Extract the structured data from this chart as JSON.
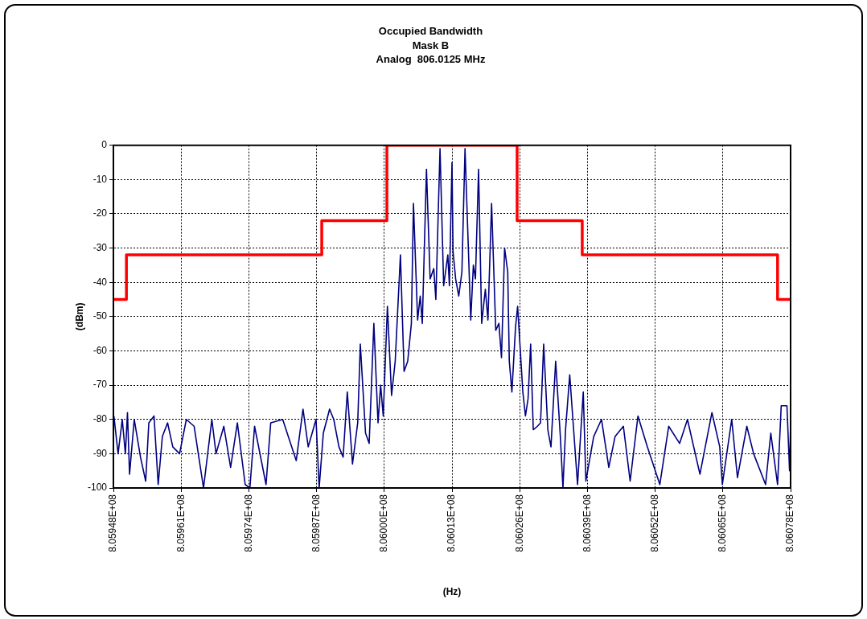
{
  "chart_data": {
    "type": "line",
    "title": "Occupied Bandwidth",
    "subtitle": "Mask B\nAnalog  806.0125 MHz",
    "xlabel": "(Hz)",
    "ylabel": "(dBm)",
    "xlim": [
      805948000,
      806078000
    ],
    "xticks": [
      {
        "value": 805948000,
        "label": "8.05948E+08"
      },
      {
        "value": 805961000,
        "label": "8.05961E+08"
      },
      {
        "value": 805974000,
        "label": "8.05974E+08"
      },
      {
        "value": 805987000,
        "label": "8.05987E+08"
      },
      {
        "value": 806000000,
        "label": "8.06000E+08"
      },
      {
        "value": 806013000,
        "label": "8.06013E+08"
      },
      {
        "value": 806026000,
        "label": "8.06026E+08"
      },
      {
        "value": 806039000,
        "label": "8.06039E+08"
      },
      {
        "value": 806052000,
        "label": "8.06052E+08"
      },
      {
        "value": 806065000,
        "label": "8.06065E+08"
      },
      {
        "value": 806078000,
        "label": "8.06078E+08"
      }
    ],
    "ylim": [
      -100,
      0
    ],
    "yticks": [
      0,
      -10,
      -20,
      -30,
      -40,
      -50,
      -60,
      -70,
      -80,
      -90,
      -100
    ],
    "grid": true,
    "series": [
      {
        "type": "step",
        "color": "#ff0000",
        "x": [
          805948000,
          805950500,
          805988000,
          806000500,
          806025500,
          806038000,
          806075500,
          806078000
        ],
        "values": [
          -45,
          -32,
          -22,
          0,
          -22,
          -32,
          -45,
          -45
        ]
      },
      {
        "type": "line",
        "color": "#000080",
        "x": [
          805948100,
          805948900,
          805949700,
          805950300,
          805950700,
          805951100,
          805952000,
          805953200,
          805954200,
          805954800,
          805955800,
          805956600,
          805957400,
          805958400,
          805959400,
          805960700,
          805962000,
          805963500,
          805965300,
          805966900,
          805967700,
          805969200,
          805970500,
          805971800,
          805973300,
          805974200,
          805975100,
          805977300,
          805978200,
          805980500,
          805983100,
          805984400,
          805985400,
          805986900,
          805987500,
          805988300,
          805989500,
          805990300,
          805991300,
          805992100,
          805992900,
          805993900,
          805994900,
          805995400,
          805996400,
          805997100,
          805998000,
          805998800,
          805999300,
          805999800,
          806000600,
          806001400,
          806002100,
          806003100,
          806003800,
          806004500,
          806005200,
          806005600,
          806006400,
          806006900,
          806007300,
          806008100,
          806008800,
          806009500,
          806009900,
          806010700,
          806011400,
          806012200,
          806012500,
          806013000,
          806013200,
          806013700,
          806014300,
          806014900,
          806015500,
          806016600,
          806017100,
          806017500,
          806018100,
          806018700,
          806019400,
          806019900,
          806020600,
          806021400,
          806022000,
          806022500,
          806023100,
          806023700,
          806024000,
          806024500,
          806025200,
          806025600,
          806026600,
          806027100,
          806027600,
          806028100,
          806028600,
          806029400,
          806030000,
          806030600,
          806031400,
          806032000,
          806032900,
          806033800,
          806034300,
          806034800,
          806035600,
          806037100,
          806038200,
          806038700,
          806040200,
          806041700,
          806043100,
          806044300,
          806045900,
          806047200,
          806048700,
          806050500,
          806052900,
          806054600,
          806056700,
          806058200,
          806060600,
          806062900,
          806064400,
          806064900,
          806066700,
          806067800,
          806069600,
          806070900,
          806073200,
          806074200,
          806075500,
          806076200,
          806077300,
          806077800,
          806078000
        ],
        "values": [
          -79,
          -90,
          -80,
          -90,
          -78,
          -96,
          -80,
          -91,
          -98,
          -81,
          -79,
          -99,
          -85,
          -81,
          -88,
          -90,
          -80,
          -82,
          -100,
          -80,
          -90,
          -82,
          -94,
          -81,
          -99,
          -100,
          -82,
          -99,
          -81,
          -80,
          -92,
          -77,
          -88,
          -80,
          -100,
          -84,
          -77,
          -80,
          -88,
          -91,
          -72,
          -93,
          -81,
          -58,
          -84,
          -87,
          -52,
          -81,
          -70,
          -79,
          -47,
          -73,
          -63,
          -32,
          -66,
          -63,
          -52,
          -17,
          -51,
          -44,
          -52,
          -7,
          -39,
          -36,
          -45,
          -1,
          -41,
          -32,
          -41,
          -5,
          -31,
          -39,
          -44,
          -37,
          -1,
          -51,
          -35,
          -39,
          -7,
          -52,
          -42,
          -51,
          -17,
          -54,
          -52,
          -62,
          -30,
          -37,
          -63,
          -72,
          -53,
          -47,
          -72,
          -79,
          -74,
          -58,
          -83,
          -82,
          -81,
          -58,
          -83,
          -88,
          -63,
          -85,
          -100,
          -83,
          -67,
          -99,
          -72,
          -98,
          -85,
          -80,
          -94,
          -85,
          -82,
          -98,
          -79,
          -88,
          -99,
          -82,
          -87,
          -80,
          -96,
          -78,
          -88,
          -99,
          -80,
          -97,
          -82,
          -90,
          -99,
          -84,
          -99,
          -76,
          -76,
          -95,
          -81
        ]
      }
    ]
  }
}
